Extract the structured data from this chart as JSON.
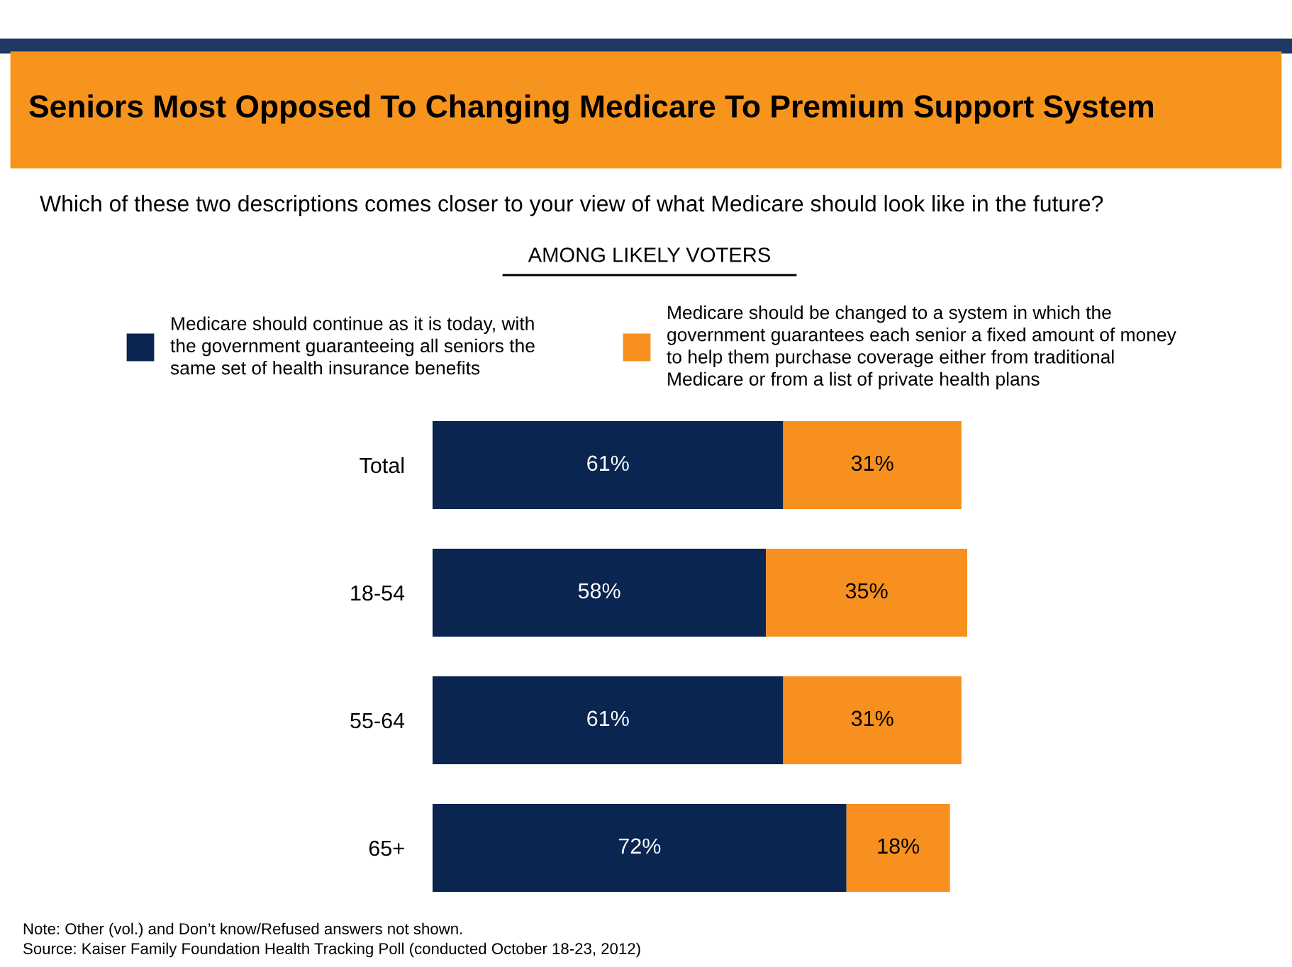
{
  "chart_data": {
    "type": "bar",
    "orientation": "horizontal",
    "stacked": true,
    "title": "Seniors Most Opposed To Changing Medicare To Premium Support System",
    "subtitle": "Which of these two descriptions comes closer to your view of what Medicare should look like in the future?",
    "categories": [
      "Total",
      "18-54",
      "55-64",
      "65+"
    ],
    "series": [
      {
        "name": "Medicare should continue as it is today, with the government guaranteeing all seniors the same set of health insurance benefits",
        "color": "#0a2550",
        "values": [
          61,
          58,
          61,
          72
        ],
        "value_labels": [
          "61%",
          "58%",
          "61%",
          "72%"
        ]
      },
      {
        "name": "Medicare should be changed to a system in which the government guarantees each senior a fixed amount of money to help them purchase coverage either from traditional Medicare or from a list of private health plans",
        "color": "#f7901e",
        "values": [
          31,
          35,
          31,
          18
        ],
        "value_labels": [
          "31%",
          "35%",
          "31%",
          "18%"
        ]
      }
    ],
    "legend": "top",
    "annotations": [
      "AMONG LIKELY VOTERS",
      "Note: Other (vol.) and Don’t know/Refused answers not shown.",
      "Source: Kaiser Family Foundation Health Tracking Poll (conducted October 18-23, 2012)"
    ]
  }
}
